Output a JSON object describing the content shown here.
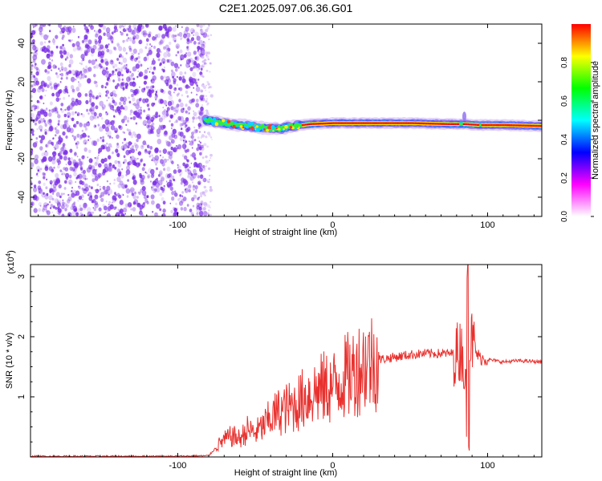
{
  "figure_title": "C2E1.2025.097.06.36.G01",
  "chart_data": [
    {
      "type": "heatmap",
      "xlabel": "Height of straight line (km)",
      "ylabel": "Frequency (Hz)",
      "xlim": [
        -195,
        135
      ],
      "ylim": [
        -50,
        50
      ],
      "x_ticks": [
        -100,
        0,
        100
      ],
      "y_ticks": [
        -40,
        -20,
        0,
        20,
        40
      ],
      "colorbar": {
        "label": "Normalized spectral amplitude",
        "range": [
          0,
          1
        ],
        "ticks": [
          0.0,
          0.2,
          0.4,
          0.6,
          0.8
        ],
        "stops": [
          "#ffffff",
          "#ff00ff",
          "#0000ff",
          "#00ffff",
          "#00ff00",
          "#ffff00",
          "#ff0000"
        ]
      },
      "noise_region": {
        "x": [
          -195,
          -82
        ],
        "color": "#7b2ee6"
      },
      "signal_ridge": [
        {
          "x": -82,
          "f": 0.0
        },
        {
          "x": -75,
          "f": -1.0
        },
        {
          "x": -65,
          "f": -2.0
        },
        {
          "x": -55,
          "f": -3.0
        },
        {
          "x": -45,
          "f": -4.0
        },
        {
          "x": -35,
          "f": -4.5
        },
        {
          "x": -25,
          "f": -3.0
        },
        {
          "x": -15,
          "f": -2.0
        },
        {
          "x": 0,
          "f": -1.5
        },
        {
          "x": 20,
          "f": -1.5
        },
        {
          "x": 50,
          "f": -1.5
        },
        {
          "x": 75,
          "f": -2.0
        },
        {
          "x": 85,
          "f": -2.0
        },
        {
          "x": 95,
          "f": -2.5
        },
        {
          "x": 110,
          "f": -2.5
        },
        {
          "x": 135,
          "f": -3.0
        }
      ]
    },
    {
      "type": "line",
      "xlabel": "Height of straight line (km)",
      "ylabel": "SNR (10 * v/v)",
      "y_scale_label": "(x10",
      "y_scale_exp": "4",
      "xlim": [
        -195,
        135
      ],
      "ylim": [
        0,
        3.2
      ],
      "x_ticks": [
        -100,
        0,
        100
      ],
      "y_ticks": [
        1,
        2,
        3
      ],
      "series": [
        {
          "color": "#e8312e",
          "points": [
            [
              -195,
              0.01
            ],
            [
              -150,
              0.01
            ],
            [
              -100,
              0.01
            ],
            [
              -80,
              0.02
            ],
            [
              -72,
              0.25
            ],
            [
              -65,
              0.35
            ],
            [
              -60,
              0.3
            ],
            [
              -55,
              0.45
            ],
            [
              -50,
              0.4
            ],
            [
              -45,
              0.5
            ],
            [
              -40,
              0.65
            ],
            [
              -35,
              0.75
            ],
            [
              -30,
              0.8
            ],
            [
              -25,
              0.85
            ],
            [
              -20,
              0.95
            ],
            [
              -15,
              1.05
            ],
            [
              -10,
              1.1
            ],
            [
              -5,
              1.15
            ],
            [
              0,
              1.15
            ],
            [
              5,
              1.3
            ],
            [
              10,
              1.35
            ],
            [
              15,
              1.45
            ],
            [
              20,
              1.55
            ],
            [
              25,
              1.6
            ],
            [
              30,
              1.62
            ],
            [
              40,
              1.66
            ],
            [
              50,
              1.7
            ],
            [
              60,
              1.72
            ],
            [
              70,
              1.72
            ],
            [
              80,
              1.72
            ],
            [
              84,
              1.8
            ],
            [
              87,
              0.6
            ],
            [
              89,
              2.0
            ],
            [
              92,
              1.75
            ],
            [
              95,
              1.65
            ],
            [
              100,
              1.62
            ],
            [
              110,
              1.58
            ],
            [
              120,
              1.6
            ],
            [
              135,
              1.58
            ]
          ]
        }
      ]
    }
  ]
}
